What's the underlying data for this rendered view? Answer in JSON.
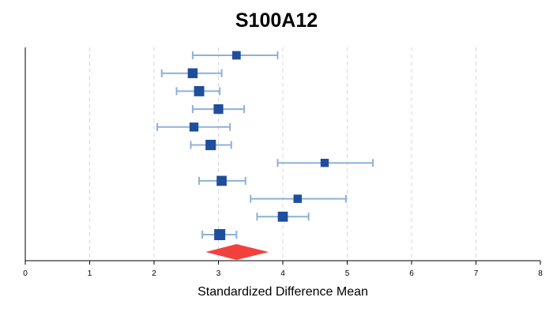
{
  "chart_data": {
    "type": "forest",
    "title": "S100A12",
    "xlabel": "Standardized Difference Mean",
    "xlim": [
      0,
      8
    ],
    "xticks": [
      0,
      1,
      2,
      3,
      4,
      5,
      6,
      7,
      8
    ],
    "grid": "vertical dashed",
    "studies": [
      {
        "estimate": 3.28,
        "lower": 2.6,
        "upper": 3.92,
        "weight": 0.35
      },
      {
        "estimate": 2.6,
        "lower": 2.12,
        "upper": 3.05,
        "weight": 0.65
      },
      {
        "estimate": 2.7,
        "lower": 2.35,
        "upper": 3.02,
        "weight": 0.75
      },
      {
        "estimate": 3.0,
        "lower": 2.6,
        "upper": 3.4,
        "weight": 0.6
      },
      {
        "estimate": 2.62,
        "lower": 2.05,
        "upper": 3.18,
        "weight": 0.45
      },
      {
        "estimate": 2.88,
        "lower": 2.57,
        "upper": 3.2,
        "weight": 0.8
      },
      {
        "estimate": 4.65,
        "lower": 3.92,
        "upper": 5.4,
        "weight": 0.3
      },
      {
        "estimate": 3.05,
        "lower": 2.7,
        "upper": 3.42,
        "weight": 0.7
      },
      {
        "estimate": 4.23,
        "lower": 3.5,
        "upper": 4.98,
        "weight": 0.32
      },
      {
        "estimate": 4.0,
        "lower": 3.6,
        "upper": 4.4,
        "weight": 0.7
      },
      {
        "estimate": 3.02,
        "lower": 2.75,
        "upper": 3.28,
        "weight": 1.0
      }
    ],
    "pooled": {
      "estimate": 3.28,
      "lower": 2.8,
      "upper": 3.78
    },
    "colors": {
      "box": "#1f4e9c",
      "ci": "#8fb0d8",
      "pooled": "#f2413d",
      "grid": "#d9d9d9",
      "axis": "#000000"
    }
  }
}
